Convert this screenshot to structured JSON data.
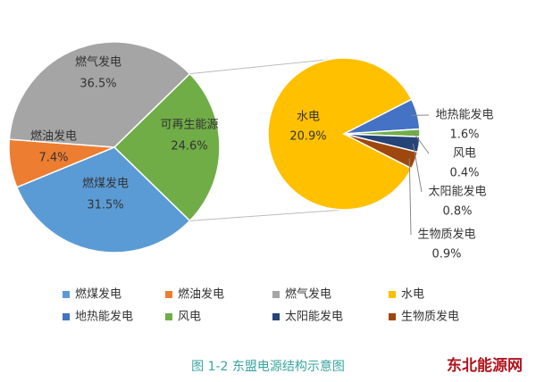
{
  "chart_data": {
    "type": "pie-of-pie",
    "caption": "图 1-2 东盟电源结构示意图",
    "watermark": "东北能源网",
    "split": 3,
    "pie": {
      "categories": [
        "燃煤发电",
        "燃油发电",
        "燃气发电",
        "可再生能源"
      ],
      "values": [
        31.5,
        7.4,
        36.5,
        24.6
      ],
      "value_labels": [
        "31.5%",
        "7.4%",
        "36.5%",
        "24.6%"
      ],
      "colors": [
        "#5b9bd5",
        "#ed7d31",
        "#a5a5a5",
        "#70ad47"
      ]
    },
    "sub_pie": {
      "categories": [
        "水电",
        "地热能发电",
        "风电",
        "太阳能发电",
        "生物质发电"
      ],
      "values": [
        20.9,
        1.6,
        0.4,
        0.8,
        0.9
      ],
      "value_labels": [
        "20.9%",
        "1.6%",
        "0.4%",
        "0.8%",
        "0.9%"
      ],
      "colors": [
        "#ffc000",
        "#4472c4",
        "#70ad47",
        "#264478",
        "#9e480e"
      ]
    }
  }
}
